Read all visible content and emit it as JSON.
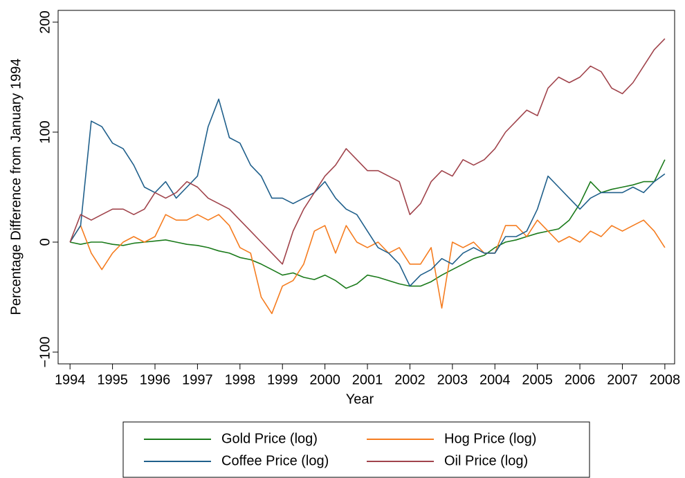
{
  "chart_data": {
    "type": "line",
    "xlabel": "Year",
    "ylabel": "Percentage Difference from January 1994",
    "x": [
      1994,
      1994.25,
      1994.5,
      1994.75,
      1995,
      1995.25,
      1995.5,
      1995.75,
      1996,
      1996.25,
      1996.5,
      1996.75,
      1997,
      1997.25,
      1997.5,
      1997.75,
      1998,
      1998.25,
      1998.5,
      1998.75,
      1999,
      1999.25,
      1999.5,
      1999.75,
      2000,
      2000.25,
      2000.5,
      2000.75,
      2001,
      2001.25,
      2001.5,
      2001.75,
      2002,
      2002.25,
      2002.5,
      2002.75,
      2003,
      2003.25,
      2003.5,
      2003.75,
      2004,
      2004.25,
      2004.5,
      2004.75,
      2005,
      2005.25,
      2005.5,
      2005.75,
      2006,
      2006.25,
      2006.5,
      2006.75,
      2007,
      2007.25,
      2007.5,
      2007.75,
      2008
    ],
    "series": [
      {
        "name": "Gold Price (log)",
        "color": "#1a7a1a",
        "values": [
          0,
          -2,
          0,
          0,
          -2,
          -3,
          -1,
          0,
          1,
          2,
          0,
          -2,
          -3,
          -5,
          -8,
          -10,
          -14,
          -16,
          -20,
          -25,
          -30,
          -28,
          -32,
          -34,
          -30,
          -35,
          -42,
          -38,
          -30,
          -32,
          -35,
          -38,
          -40,
          -40,
          -36,
          -30,
          -25,
          -20,
          -15,
          -12,
          -5,
          0,
          2,
          5,
          8,
          10,
          12,
          20,
          35,
          55,
          45,
          48,
          50,
          52,
          55,
          55,
          75
        ]
      },
      {
        "name": "Hog Price (log)",
        "color": "#f57c1f",
        "values": [
          0,
          15,
          -10,
          -25,
          -10,
          0,
          5,
          0,
          5,
          25,
          20,
          20,
          25,
          20,
          25,
          15,
          -5,
          -10,
          -50,
          -65,
          -40,
          -35,
          -20,
          10,
          15,
          -10,
          15,
          0,
          -5,
          0,
          -10,
          -5,
          -20,
          -20,
          -5,
          -60,
          0,
          -5,
          0,
          -10,
          -10,
          15,
          15,
          5,
          20,
          10,
          0,
          5,
          0,
          10,
          5,
          15,
          10,
          15,
          20,
          10,
          -5
        ]
      },
      {
        "name": "Coffee Price (log)",
        "color": "#1f5f8b",
        "values": [
          0,
          15,
          110,
          105,
          90,
          85,
          70,
          50,
          45,
          55,
          40,
          50,
          60,
          105,
          130,
          95,
          90,
          70,
          60,
          40,
          40,
          35,
          40,
          45,
          55,
          40,
          30,
          25,
          10,
          -5,
          -10,
          -20,
          -40,
          -30,
          -25,
          -15,
          -20,
          -10,
          -5,
          -10,
          -10,
          5,
          5,
          10,
          30,
          60,
          50,
          40,
          30,
          40,
          45,
          45,
          45,
          50,
          45,
          55,
          62
        ]
      },
      {
        "name": "Oil Price (log)",
        "color": "#a0434b",
        "values": [
          0,
          25,
          20,
          25,
          30,
          30,
          25,
          30,
          45,
          40,
          45,
          55,
          50,
          40,
          35,
          30,
          20,
          10,
          0,
          -10,
          -20,
          10,
          30,
          45,
          60,
          70,
          85,
          75,
          65,
          65,
          60,
          55,
          25,
          35,
          55,
          65,
          60,
          75,
          70,
          75,
          85,
          100,
          110,
          120,
          115,
          140,
          150,
          145,
          150,
          160,
          155,
          140,
          135,
          145,
          160,
          175,
          185
        ]
      }
    ],
    "xlim": [
      1993.72,
      2008.23
    ],
    "ylim": [
      -110.7,
      210.7
    ],
    "xticks": [
      1994,
      1995,
      1996,
      1997,
      1998,
      1999,
      2000,
      2001,
      2002,
      2003,
      2004,
      2005,
      2006,
      2007,
      2008
    ],
    "yticks": [
      {
        "value": -100,
        "label": "−100"
      },
      0,
      100,
      200
    ]
  }
}
